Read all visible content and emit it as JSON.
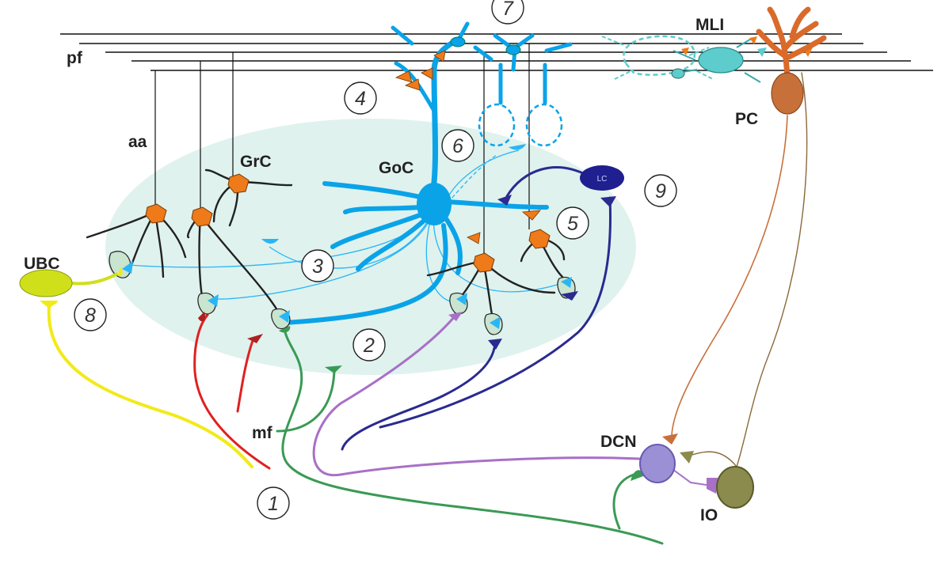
{
  "labels": {
    "pf": "pf",
    "aa": "aa",
    "grc": "GrC",
    "goc": "GoC",
    "ubc": "UBC",
    "mf": "mf",
    "mli": "MLI",
    "pc": "PC",
    "dcn": "DCN",
    "io": "IO",
    "lc": "LC"
  },
  "numbers": [
    "1",
    "2",
    "3",
    "4",
    "5",
    "6",
    "7",
    "8",
    "9"
  ],
  "colors": {
    "granular_layer": "#dff2ee",
    "golgi_cell": "#0aa3e8",
    "golgi_axon": "#29b6f6",
    "granule_cell": "#ee7a1a",
    "mli": "#5ccccc",
    "purkinje": "#c8703a",
    "purkinje_dendrite": "#d96a2a",
    "dcn": "#9b8fd6",
    "io": "#8a8b4c",
    "lc": "#1f1f8f",
    "ubc": "#cfe01a",
    "mossy_yellow": "#f2ea18",
    "mossy_red": "#e02020",
    "mossy_green": "#3a9a55",
    "mossy_purple": "#a870c8",
    "lc_axon": "#2a2a90"
  }
}
